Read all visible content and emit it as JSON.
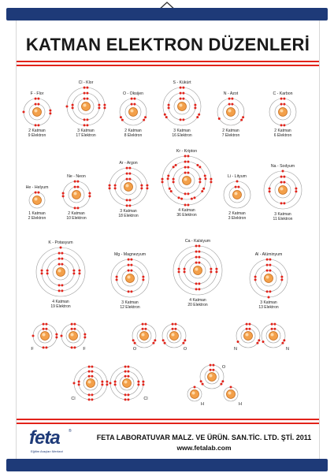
{
  "title": "KATMAN ELEKTRON DÜZENLERİ",
  "colors": {
    "rod": "#1e3a78",
    "accent": "#e2231a",
    "nucleus": "#f3a04a",
    "electron": "#e2231a",
    "shell": "#9a9a9a"
  },
  "atoms": [
    {
      "name": "F - Flor",
      "shells": [
        2,
        7
      ],
      "caption": [
        "2 Katman",
        "9 Elektron"
      ]
    },
    {
      "name": "Cl - Klor",
      "shells": [
        2,
        8,
        7
      ],
      "caption": [
        "3 Katman",
        "17 Elektron"
      ]
    },
    {
      "name": "O - Oksijen",
      "shells": [
        2,
        6
      ],
      "caption": [
        "2 Katman",
        "8 Elektron"
      ]
    },
    {
      "name": "S - Kükürt",
      "shells": [
        2,
        8,
        6
      ],
      "caption": [
        "3 Katman",
        "16 Elektron"
      ]
    },
    {
      "name": "N - Azot",
      "shells": [
        2,
        5
      ],
      "caption": [
        "2 Katman",
        "7 Elektron"
      ]
    },
    {
      "name": "C - Karbon",
      "shells": [
        2,
        4
      ],
      "caption": [
        "2 Katman",
        "6 Elektron"
      ]
    },
    {
      "name": "He - Helyum",
      "shells": [
        2
      ],
      "caption": [
        "1 Katman",
        "2 Elektron"
      ]
    },
    {
      "name": "Ne - Neon",
      "shells": [
        2,
        8
      ],
      "caption": [
        "2 Katman",
        "10 Elektron"
      ]
    },
    {
      "name": "Ar - Argon",
      "shells": [
        2,
        8,
        8
      ],
      "caption": [
        "3 Katman",
        "18 Elektron"
      ]
    },
    {
      "name": "Kr - Kripton",
      "shells": [
        2,
        8,
        18,
        8
      ],
      "caption": [
        "4 Katman",
        "36 Elektron"
      ]
    },
    {
      "name": "Li - Lityum",
      "shells": [
        2,
        1
      ],
      "caption": [
        "2 Katman",
        "3 Elektron"
      ]
    },
    {
      "name": "Na - Sodyum",
      "shells": [
        2,
        8,
        1
      ],
      "caption": [
        "3 Katman",
        "11 Elektron"
      ]
    },
    {
      "name": "K - Potasyum",
      "shells": [
        2,
        8,
        8,
        1
      ],
      "caption": [
        "4 Katman",
        "19 Elektron"
      ]
    },
    {
      "name": "Mg - Magnezyum",
      "shells": [
        2,
        8,
        2
      ],
      "caption": [
        "3 Katman",
        "12 Elektron"
      ]
    },
    {
      "name": "Ca - Kalsiyum",
      "shells": [
        2,
        8,
        8,
        2
      ],
      "caption": [
        "4 Katman",
        "20 Elektron"
      ]
    },
    {
      "name": "Al - Alüminyum",
      "shells": [
        2,
        8,
        3
      ],
      "caption": [
        "3 Katman",
        "13 Elektron"
      ]
    }
  ],
  "molecules": [
    {
      "atoms": [
        {
          "label": "F",
          "shells": [
            2,
            7
          ]
        },
        {
          "label": "F",
          "shells": [
            2,
            7
          ]
        }
      ]
    },
    {
      "atoms": [
        {
          "label": "O",
          "shells": [
            2,
            6
          ]
        },
        {
          "label": "O",
          "shells": [
            2,
            6
          ]
        }
      ]
    },
    {
      "atoms": [
        {
          "label": "N",
          "shells": [
            2,
            5
          ]
        },
        {
          "label": "N",
          "shells": [
            2,
            5
          ]
        }
      ]
    },
    {
      "atoms": [
        {
          "label": "Cl",
          "shells": [
            2,
            8,
            7
          ]
        },
        {
          "label": "Cl",
          "shells": [
            2,
            8,
            7
          ]
        }
      ]
    },
    {
      "atoms": [
        {
          "label": "O",
          "shells": [
            2,
            6
          ]
        },
        {
          "label": "H",
          "shells": [
            1
          ]
        },
        {
          "label": "H",
          "shells": [
            1
          ]
        }
      ]
    }
  ],
  "footer": {
    "company": "FETA LABORATUVAR MALZ. VE ÜRÜN. SAN.TİC. LTD. ŞTİ. 2011",
    "url": "www.fetalab.com",
    "logo_word": "feta",
    "logo_tagline": "Eğitim Araçları Merkezi",
    "logo_reg": "®"
  }
}
